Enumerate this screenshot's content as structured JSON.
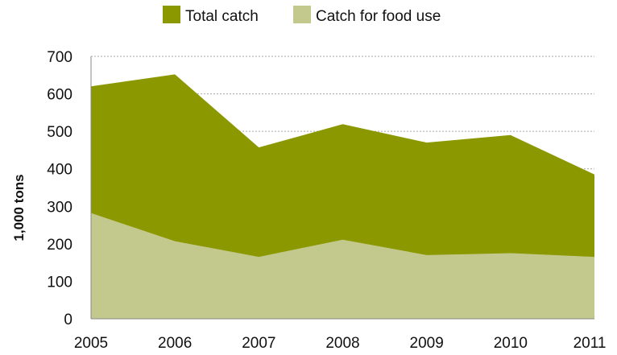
{
  "chart_data": {
    "type": "area",
    "categories": [
      "2005",
      "2006",
      "2007",
      "2008",
      "2009",
      "2010",
      "2011"
    ],
    "series": [
      {
        "name": "Total catch",
        "values": [
          620,
          652,
          457,
          519,
          470,
          490,
          385
        ],
        "color": "#8b9800"
      },
      {
        "name": "Catch for food use",
        "values": [
          282,
          207,
          165,
          211,
          170,
          175,
          165
        ],
        "color": "#c3c98c"
      }
    ],
    "ylabel": "1,000 tons",
    "xlabel": "",
    "ylim": [
      0,
      700
    ],
    "yticks": [
      0,
      100,
      200,
      300,
      400,
      500,
      600,
      700
    ],
    "grid": true,
    "legend": "top-center"
  }
}
